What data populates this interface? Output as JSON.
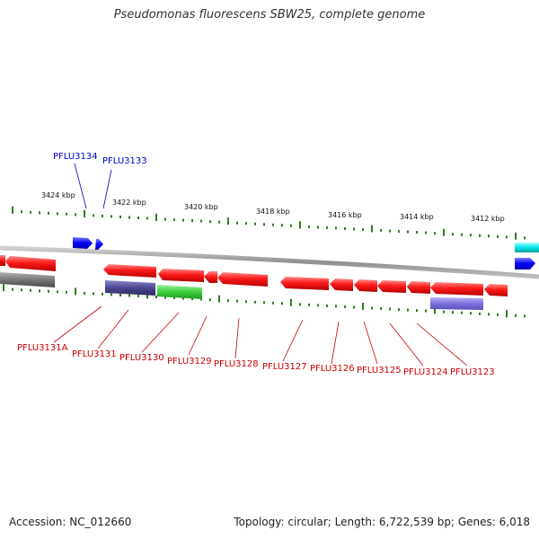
{
  "title": "Pseudomonas fluorescens SBW25, complete genome",
  "footer": {
    "accession": "Accession: NC_012660",
    "topology": "Topology: circular; Length: 6,722,539 bp; Genes: 6,018"
  },
  "colors": {
    "forward_gene": "#0000ff",
    "reverse_gene": "#ff0000",
    "rna": "#00bfbf",
    "backbone": "#999999",
    "tick": "#2e7d1e",
    "forward_label": "#0000cc",
    "reverse_label": "#cc0000"
  },
  "scale_labels": [
    "3424 kbp",
    "3422 kbp",
    "3420 kbp",
    "3418 kbp",
    "3416 kbp",
    "3414 kbp",
    "3412 kbp"
  ],
  "gene_labels_forward": [
    "PFLU3134",
    "PFLU3133"
  ],
  "gene_labels_reverse": [
    "PFLU3131A",
    "PFLU3131",
    "PFLU3130",
    "PFLU3129",
    "PFLU3128",
    "PFLU3127",
    "PFLU3126",
    "PFLU3125",
    "PFLU3124",
    "PFLU3123"
  ]
}
